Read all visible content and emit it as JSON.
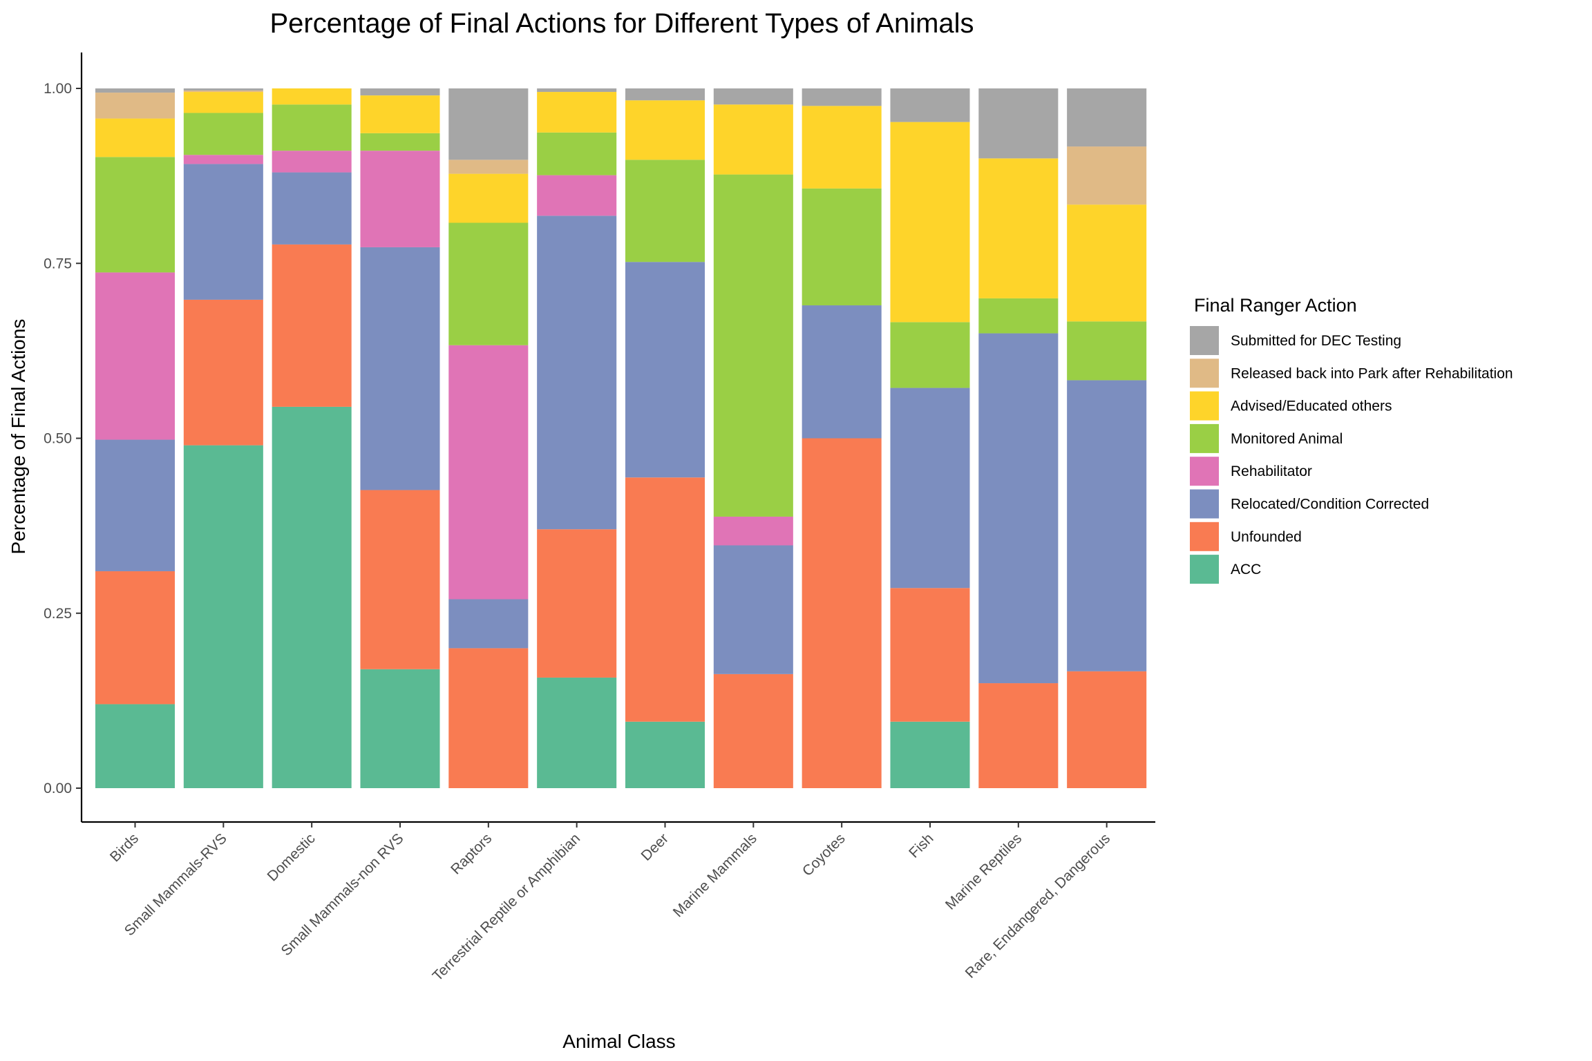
{
  "chart_data": {
    "type": "bar",
    "stacked": true,
    "title": "Percentage of Final Actions for Different Types of Animals",
    "xlabel": "Animal Class",
    "ylabel": "Percentage of Final Actions",
    "ylim": [
      0,
      1
    ],
    "yticks": [
      "0.00",
      "0.25",
      "0.50",
      "0.75",
      "1.00"
    ],
    "grid": false,
    "legend_title": "Final Ranger Action",
    "legend_position": "right",
    "categories": [
      "Birds",
      "Small Mammals-RVS",
      "Domestic",
      "Small Mammals-non RVS",
      "Raptors",
      "Terrestrial Reptile or Amphibian",
      "Deer",
      "Marine Mammals",
      "Coyotes",
      "Fish",
      "Marine Reptiles",
      "Rare, Endangered, Dangerous"
    ],
    "series": [
      {
        "name": "ACC",
        "color": "#5ABA93",
        "values": [
          0.12,
          0.49,
          0.545,
          0.17,
          0.0,
          0.158,
          0.095,
          0.0,
          0.0,
          0.095,
          0.0,
          0.0
        ]
      },
      {
        "name": "Unfounded",
        "color": "#F97B52",
        "values": [
          0.19,
          0.208,
          0.232,
          0.256,
          0.2,
          0.212,
          0.349,
          0.163,
          0.5,
          0.191,
          0.15,
          0.167
        ]
      },
      {
        "name": "Relocated/Condition Corrected",
        "color": "#7C8EBF",
        "values": [
          0.188,
          0.194,
          0.103,
          0.347,
          0.07,
          0.448,
          0.308,
          0.184,
          0.19,
          0.286,
          0.5,
          0.416
        ]
      },
      {
        "name": "Rehabilitator",
        "color": "#E074B6",
        "values": [
          0.239,
          0.013,
          0.031,
          0.138,
          0.363,
          0.058,
          0.0,
          0.041,
          0.0,
          0.0,
          0.0,
          0.0
        ]
      },
      {
        "name": "Monitored Animal",
        "color": "#9ACF45",
        "values": [
          0.165,
          0.06,
          0.066,
          0.025,
          0.175,
          0.061,
          0.146,
          0.489,
          0.167,
          0.094,
          0.05,
          0.084
        ]
      },
      {
        "name": "Advised/Educated others",
        "color": "#FED42A",
        "values": [
          0.055,
          0.03,
          0.023,
          0.054,
          0.07,
          0.058,
          0.085,
          0.1,
          0.118,
          0.286,
          0.2,
          0.167
        ]
      },
      {
        "name": "Released back into Park after Rehabilitation",
        "color": "#E0BA86",
        "values": [
          0.037,
          0.002,
          0.0,
          0.0,
          0.02,
          0.0,
          0.0,
          0.0,
          0.0,
          0.0,
          0.0,
          0.083
        ]
      },
      {
        "name": "Submitted for DEC Testing",
        "color": "#A6A6A6",
        "values": [
          0.006,
          0.003,
          0.0,
          0.01,
          0.102,
          0.005,
          0.017,
          0.023,
          0.025,
          0.048,
          0.1,
          0.083
        ]
      }
    ]
  }
}
